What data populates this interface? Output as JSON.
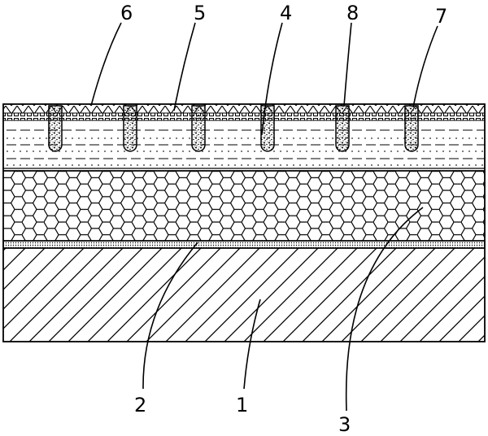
{
  "figure": {
    "labels": {
      "l1": "1",
      "l2": "2",
      "l3": "3",
      "l4": "4",
      "l5": "5",
      "l6": "6",
      "l7": "7",
      "l8": "8"
    }
  }
}
